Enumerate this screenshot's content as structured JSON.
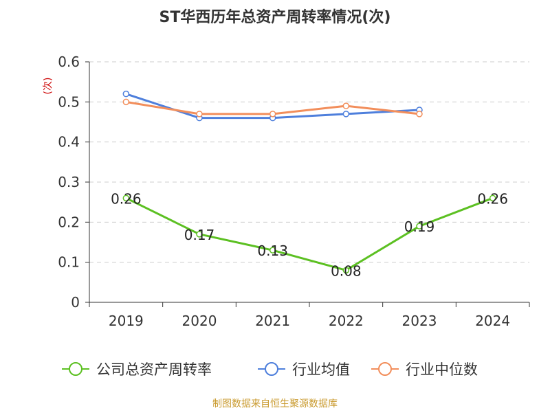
{
  "chart_data": {
    "type": "line",
    "title": "ST华西历年总资产周转率情况(次)",
    "ylabel": "(次)",
    "categories": [
      "2019",
      "2020",
      "2021",
      "2022",
      "2023",
      "2024"
    ],
    "ylim": [
      0,
      0.6
    ],
    "yticks": [
      "0",
      "0.1",
      "0.2",
      "0.3",
      "0.4",
      "0.5",
      "0.6"
    ],
    "grid": true,
    "legend_position": "bottom",
    "series": [
      {
        "name": "公司总资产周转率",
        "color": "#5cc022",
        "values": [
          0.26,
          0.17,
          0.13,
          0.08,
          0.19,
          0.26
        ],
        "labels": [
          "0.26",
          "0.17",
          "0.13",
          "0.08",
          "0.19",
          "0.26"
        ]
      },
      {
        "name": "行业均值",
        "color": "#4e7fdc",
        "values": [
          0.52,
          0.46,
          0.46,
          0.47,
          0.48,
          null
        ]
      },
      {
        "name": "行业中位数",
        "color": "#f28e5b",
        "values": [
          0.5,
          0.47,
          0.47,
          0.49,
          0.47,
          null
        ]
      }
    ]
  },
  "footer": {
    "source": "制图数据来自恒生聚源数据库",
    "source_color": "#c99a2e"
  },
  "colors": {
    "ylabel": "#cc0000",
    "grid": "#cccccc",
    "axis": "#333333"
  }
}
